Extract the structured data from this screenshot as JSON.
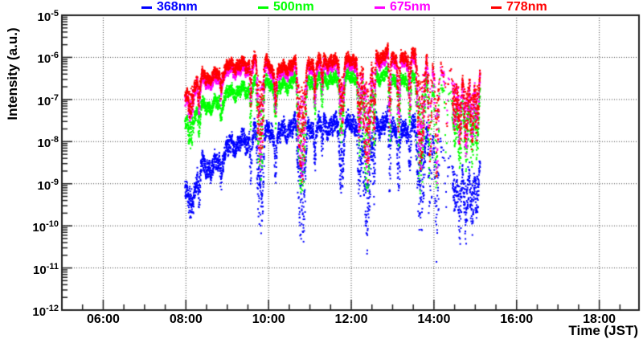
{
  "chart_data": {
    "type": "scatter",
    "title": "",
    "xlabel": "Time (JST)",
    "ylabel": "Intensity (a.u.)",
    "x_axis": {
      "unit": "hours_JST",
      "min": 5.0,
      "max": 18.96,
      "major_ticks": [
        6,
        8,
        10,
        12,
        14,
        16,
        18
      ],
      "major_labels": [
        "06:00",
        "08:00",
        "10:00",
        "12:00",
        "14:00",
        "16:00",
        "18:00"
      ],
      "minor_step_h": 0.5
    },
    "y_axis": {
      "scale": "log",
      "max_exp": -5,
      "min_exp": -12,
      "base_label": "10",
      "tick_exponents": [
        "-5",
        "-6",
        "-7",
        "-8",
        "-9",
        "-10",
        "-11",
        "-12"
      ]
    },
    "grid": {
      "style": "dotted",
      "color": "#444444",
      "on_major_x": true,
      "on_major_y": true
    },
    "axis_color": "#222222",
    "legend_position": "top",
    "series": [
      {
        "name": "368nm",
        "color": "#0000ff",
        "marker": "dot",
        "time_range_h": [
          7.98,
          15.12
        ],
        "noise_dex": 0.2,
        "osc_scale": 1.5,
        "trend_log10": [
          [
            7.98,
            -9.1
          ],
          [
            8.15,
            -9.2
          ],
          [
            8.35,
            -8.72
          ],
          [
            8.6,
            -8.58
          ],
          [
            9.0,
            -8.25
          ],
          [
            9.3,
            -8.02
          ],
          [
            9.6,
            -7.85
          ],
          [
            9.95,
            -7.85
          ],
          [
            10.3,
            -7.76
          ],
          [
            10.7,
            -7.7
          ],
          [
            11.2,
            -7.66
          ],
          [
            11.9,
            -7.6
          ],
          [
            12.6,
            -7.6
          ],
          [
            13.2,
            -7.63
          ],
          [
            13.7,
            -7.7
          ],
          [
            13.95,
            -7.85
          ],
          [
            14.25,
            -8.3
          ],
          [
            14.5,
            -8.55
          ],
          [
            14.8,
            -8.65
          ],
          [
            15.12,
            -8.72
          ]
        ]
      },
      {
        "name": "500nm",
        "color": "#00ff00",
        "marker": "dot",
        "time_range_h": [
          7.98,
          15.12
        ],
        "noise_dex": 0.13,
        "osc_scale": 1.1,
        "trend_log10": [
          [
            7.98,
            -7.55
          ],
          [
            8.2,
            -7.35
          ],
          [
            8.5,
            -7.18
          ],
          [
            9.0,
            -6.93
          ],
          [
            9.5,
            -6.7
          ],
          [
            9.8,
            -6.6
          ],
          [
            10.1,
            -6.72
          ],
          [
            10.5,
            -6.65
          ],
          [
            11.0,
            -6.58
          ],
          [
            11.5,
            -6.53
          ],
          [
            12.0,
            -6.5
          ],
          [
            12.7,
            -6.46
          ],
          [
            13.3,
            -6.5
          ],
          [
            13.8,
            -6.58
          ],
          [
            14.1,
            -6.72
          ],
          [
            14.4,
            -6.92
          ],
          [
            14.8,
            -7.02
          ],
          [
            15.12,
            -7.08
          ]
        ]
      },
      {
        "name": "675nm",
        "color": "#ff00ff",
        "marker": "dot",
        "time_range_h": [
          7.98,
          15.12
        ],
        "noise_dex": 0.13,
        "osc_scale": 1.0,
        "trend_log10": [
          [
            7.98,
            -7.02
          ],
          [
            8.2,
            -6.72
          ],
          [
            8.5,
            -6.58
          ],
          [
            9.0,
            -6.38
          ],
          [
            9.55,
            -6.2
          ],
          [
            9.8,
            -6.16
          ],
          [
            10.1,
            -6.42
          ],
          [
            10.5,
            -6.32
          ],
          [
            11.0,
            -6.25
          ],
          [
            11.5,
            -6.2
          ],
          [
            12.0,
            -6.2
          ],
          [
            12.55,
            -6.1
          ],
          [
            13.0,
            -6.07
          ],
          [
            13.5,
            -6.07
          ],
          [
            13.85,
            -6.18
          ],
          [
            14.1,
            -6.38
          ],
          [
            14.4,
            -6.5
          ],
          [
            14.8,
            -6.6
          ],
          [
            15.12,
            -6.66
          ]
        ]
      },
      {
        "name": "778nm",
        "color": "#ff0000",
        "marker": "dot",
        "time_range_h": [
          7.98,
          15.12
        ],
        "noise_dex": 0.12,
        "osc_scale": 1.0,
        "trend_log10": [
          [
            7.98,
            -6.92
          ],
          [
            8.2,
            -6.62
          ],
          [
            8.5,
            -6.48
          ],
          [
            9.0,
            -6.28
          ],
          [
            9.55,
            -6.1
          ],
          [
            9.8,
            -6.06
          ],
          [
            10.1,
            -6.32
          ],
          [
            10.5,
            -6.22
          ],
          [
            11.0,
            -6.15
          ],
          [
            11.5,
            -6.1
          ],
          [
            12.0,
            -6.1
          ],
          [
            12.55,
            -6.0
          ],
          [
            13.0,
            -5.97
          ],
          [
            13.5,
            -5.97
          ],
          [
            13.85,
            -6.08
          ],
          [
            14.1,
            -6.28
          ],
          [
            14.4,
            -6.42
          ],
          [
            14.8,
            -6.52
          ],
          [
            15.12,
            -6.58
          ]
        ]
      }
    ],
    "dip_events": [
      [
        8.12,
        10,
        0.7
      ],
      [
        8.32,
        5,
        0.7
      ],
      [
        8.85,
        4,
        0.55
      ],
      [
        9.57,
        4,
        0.9
      ],
      [
        9.8,
        13,
        2.4
      ],
      [
        10.17,
        5,
        0.8
      ],
      [
        10.8,
        17,
        2.6
      ],
      [
        11.12,
        4,
        0.8
      ],
      [
        11.3,
        5,
        0.7
      ],
      [
        11.77,
        9,
        1.5
      ],
      [
        12.2,
        8,
        2.0
      ],
      [
        12.38,
        16,
        2.6
      ],
      [
        12.55,
        6,
        1.8
      ],
      [
        12.93,
        5,
        1.7
      ],
      [
        13.15,
        6,
        1.7
      ],
      [
        13.42,
        5,
        1.2
      ],
      [
        13.68,
        16,
        2.5
      ],
      [
        13.9,
        8,
        2.3
      ],
      [
        14.07,
        8,
        2.4
      ],
      [
        14.3,
        6,
        1.5
      ],
      [
        14.5,
        10,
        1.2
      ],
      [
        14.62,
        8,
        1.5
      ],
      [
        14.78,
        10,
        1.6
      ],
      [
        14.92,
        8,
        1.4
      ],
      [
        15.04,
        8,
        1.3
      ]
    ],
    "sparse_regions": [
      [
        13.87,
        14.13,
        0.5
      ],
      [
        14.13,
        14.45,
        0.85
      ]
    ],
    "oscillation_components": [
      [
        0.32,
        0.075,
        0.0
      ],
      [
        0.14,
        0.05,
        1.2
      ],
      [
        0.06,
        0.03,
        2.4
      ],
      [
        0.75,
        0.05,
        0.7
      ]
    ],
    "sample_step_min": 0.12,
    "marker_px": 2,
    "seed": 20130217
  }
}
